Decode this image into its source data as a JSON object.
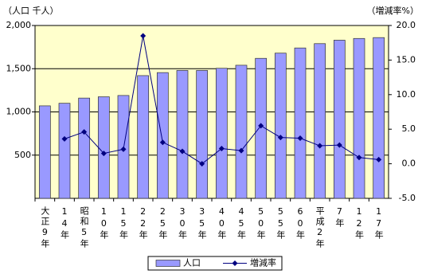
{
  "chart_data": {
    "type": "bar",
    "ylabel": "（人口 千人）",
    "y2label": "（増減率%）",
    "categories": [
      "大正9年",
      "14年",
      "昭和5年",
      "10年",
      "15年",
      "22年",
      "25年",
      "30年",
      "35年",
      "40年",
      "45年",
      "50年",
      "55年",
      "60年",
      "平成2年",
      "7年",
      "12年",
      "17年"
    ],
    "series": [
      {
        "name": "人口",
        "color": "#9999ff",
        "type": "bar",
        "values": [
          1070,
          1100,
          1160,
          1175,
          1190,
          1420,
          1455,
          1480,
          1480,
          1505,
          1540,
          1620,
          1680,
          1740,
          1790,
          1830,
          1850,
          1860
        ]
      },
      {
        "name": "増減率",
        "color": "#000080",
        "type": "line",
        "axis": "y2",
        "values": [
          null,
          3.6,
          4.6,
          1.5,
          2.1,
          18.5,
          3.1,
          1.8,
          0.0,
          2.2,
          1.9,
          5.5,
          3.8,
          3.7,
          2.6,
          2.7,
          0.9,
          0.6
        ]
      }
    ],
    "ylim": [
      0,
      2000
    ],
    "yticks": [
      500,
      {
        "value": 1000,
        "label": "1,000"
      },
      {
        "value": 1500,
        "label": "1,500"
      },
      {
        "value": 2000,
        "label": "2,000"
      }
    ],
    "y2lim": [
      -5,
      20
    ],
    "y2ticks": [
      {
        "value": -5,
        "label": "-5.0"
      },
      {
        "value": 0,
        "label": "0.0"
      },
      {
        "value": 5,
        "label": "5.0"
      },
      {
        "value": 10,
        "label": "10.0"
      },
      {
        "value": 15,
        "label": "15.0"
      },
      {
        "value": 20,
        "label": "20.0"
      }
    ],
    "grid": true,
    "background": "#ffffcc",
    "legend": "bottom"
  }
}
